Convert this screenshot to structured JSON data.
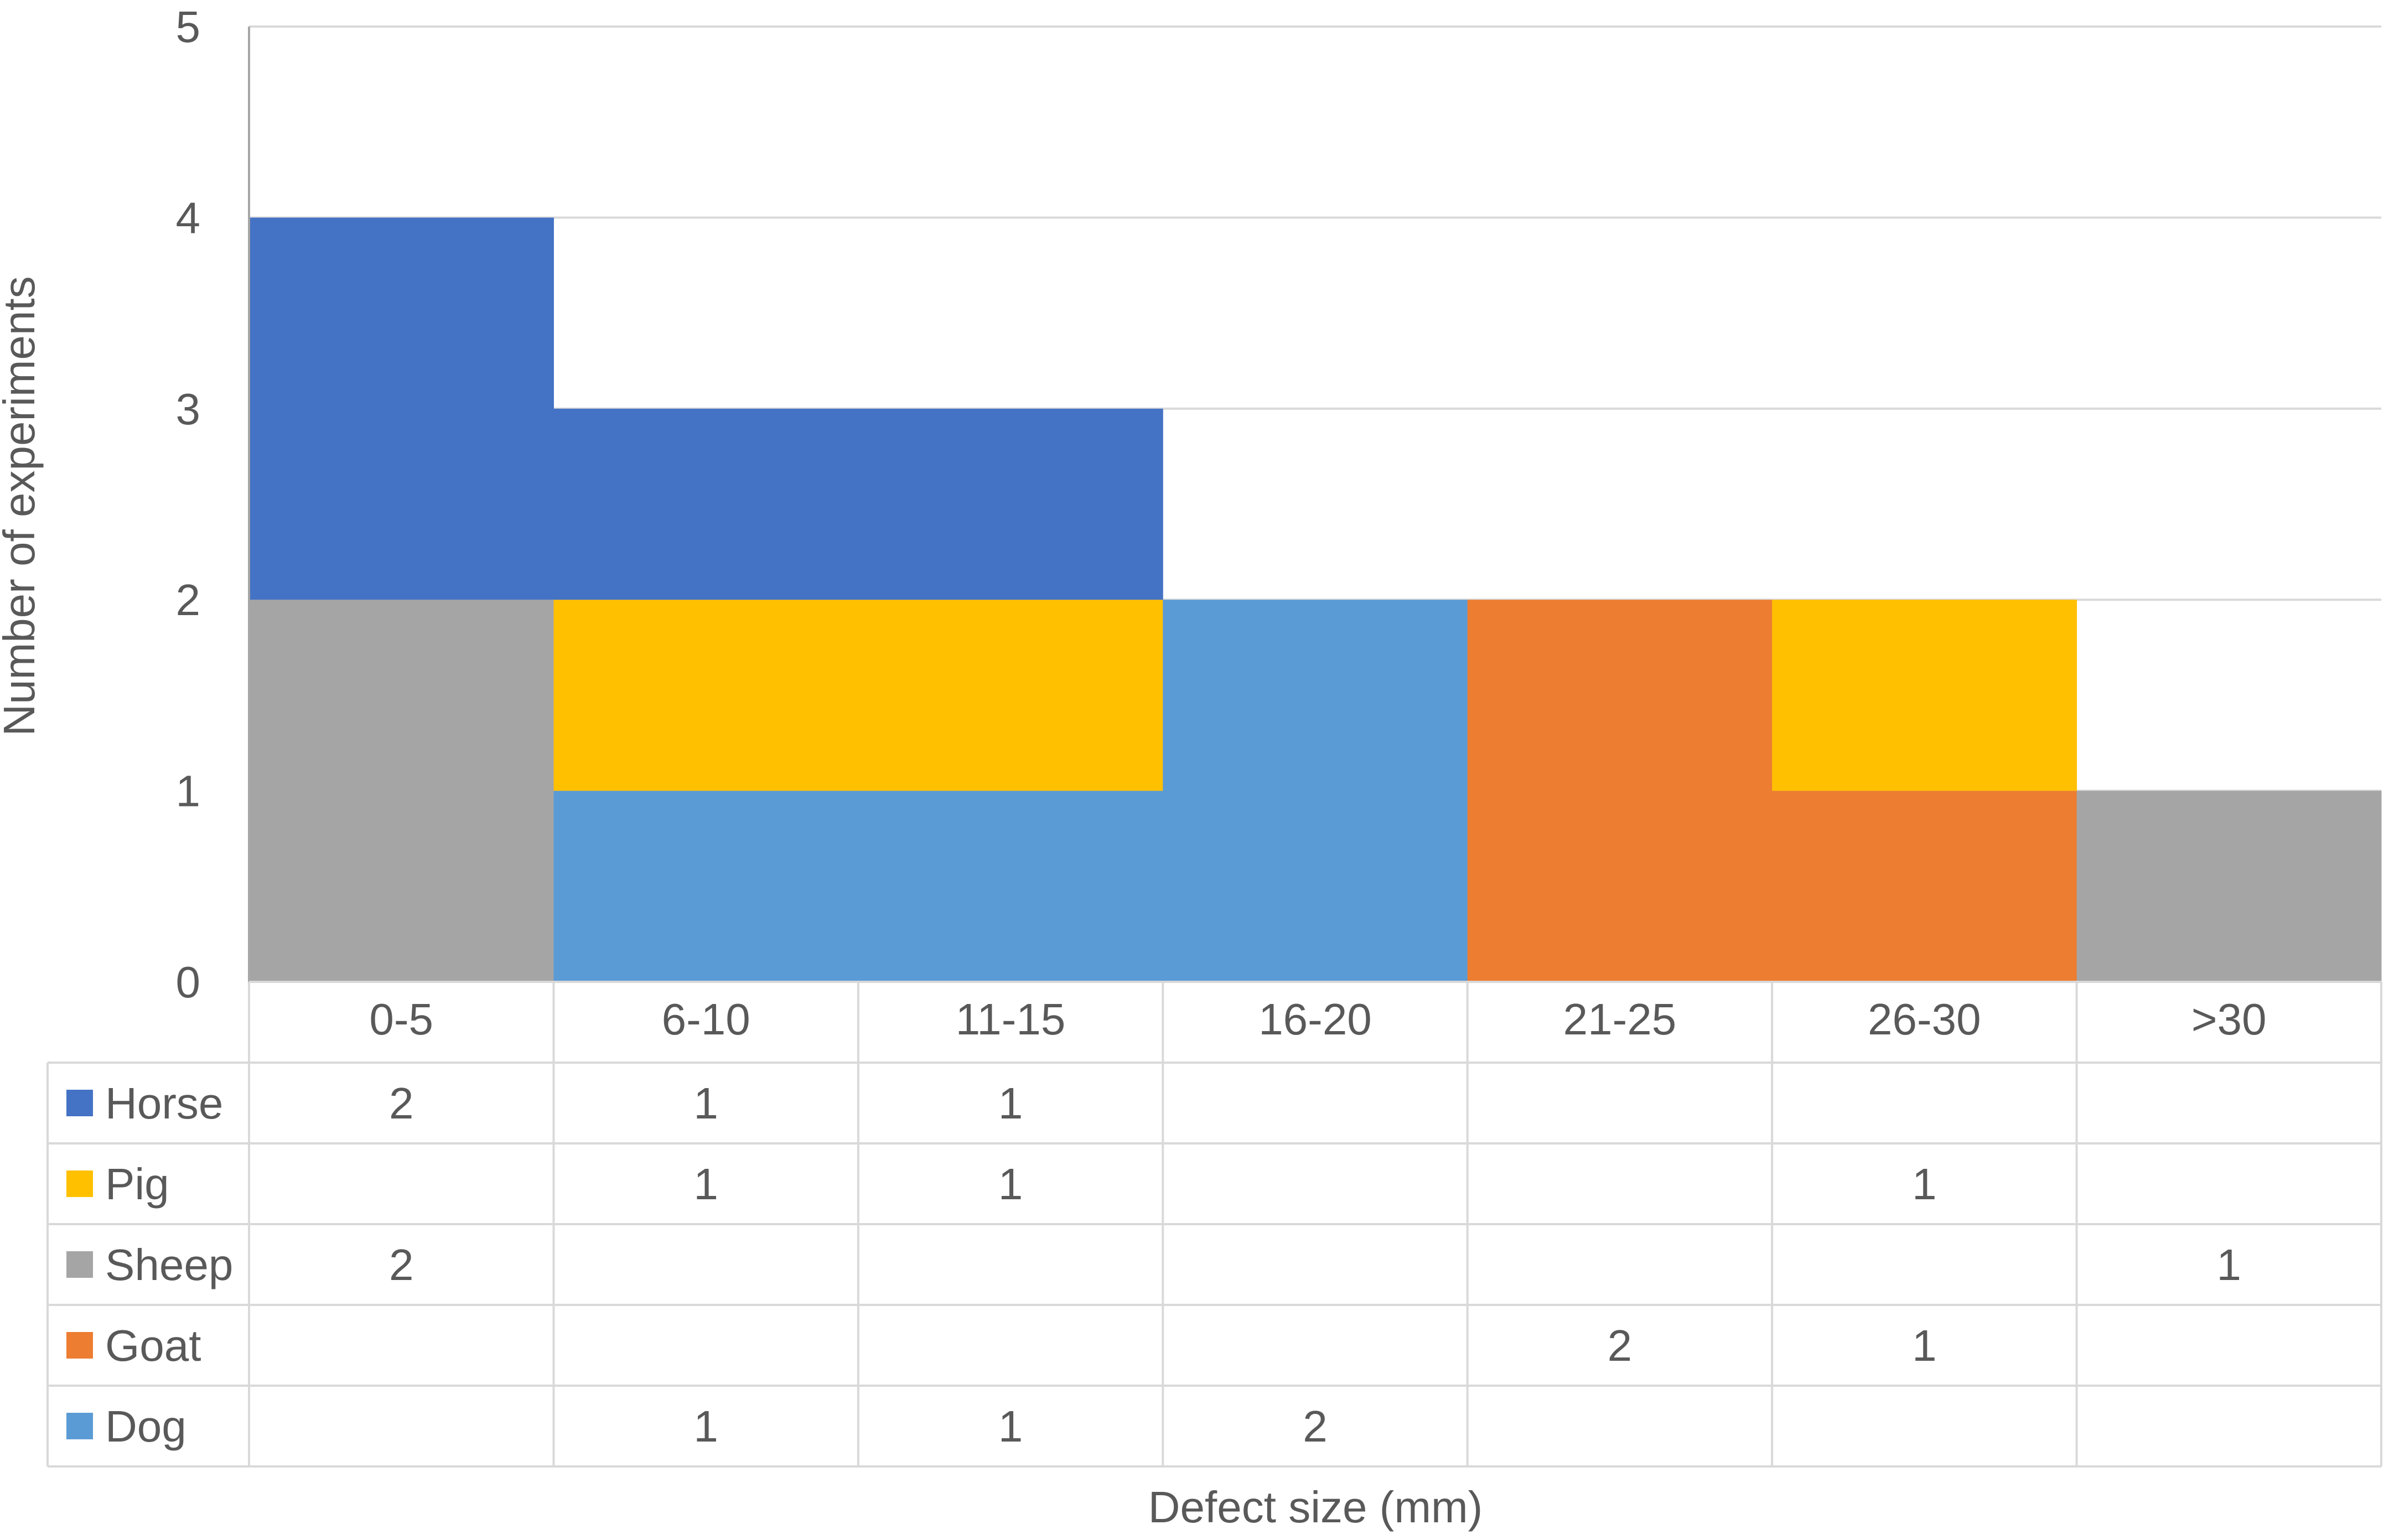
{
  "chart_data": {
    "type": "bar",
    "stacked": true,
    "gap": 0,
    "categories": [
      "0-5",
      "6-10",
      "11-15",
      "16-20",
      "21-25",
      "26-30",
      ">30"
    ],
    "series": [
      {
        "name": "Horse",
        "color": "#4472C4",
        "values": [
          2,
          1,
          1,
          null,
          null,
          null,
          null
        ]
      },
      {
        "name": "Pig",
        "color": "#FFC000",
        "values": [
          null,
          1,
          1,
          null,
          null,
          1,
          null
        ]
      },
      {
        "name": "Sheep",
        "color": "#A5A5A5",
        "values": [
          2,
          null,
          null,
          null,
          null,
          null,
          1
        ]
      },
      {
        "name": "Goat",
        "color": "#ED7D31",
        "values": [
          null,
          null,
          null,
          null,
          2,
          1,
          null
        ]
      },
      {
        "name": "Dog",
        "color": "#5B9BD5",
        "values": [
          null,
          1,
          1,
          2,
          null,
          null,
          null
        ]
      }
    ],
    "stack_order": [
      "Dog",
      "Goat",
      "Sheep",
      "Pig",
      "Horse"
    ],
    "ylabel": "Number of experiments",
    "xlabel": "Defect size (mm)",
    "ylim": [
      0,
      5
    ],
    "yticks": [
      "0",
      "1",
      "2",
      "3",
      "4",
      "5"
    ],
    "grid": true,
    "legend": "data-table"
  }
}
